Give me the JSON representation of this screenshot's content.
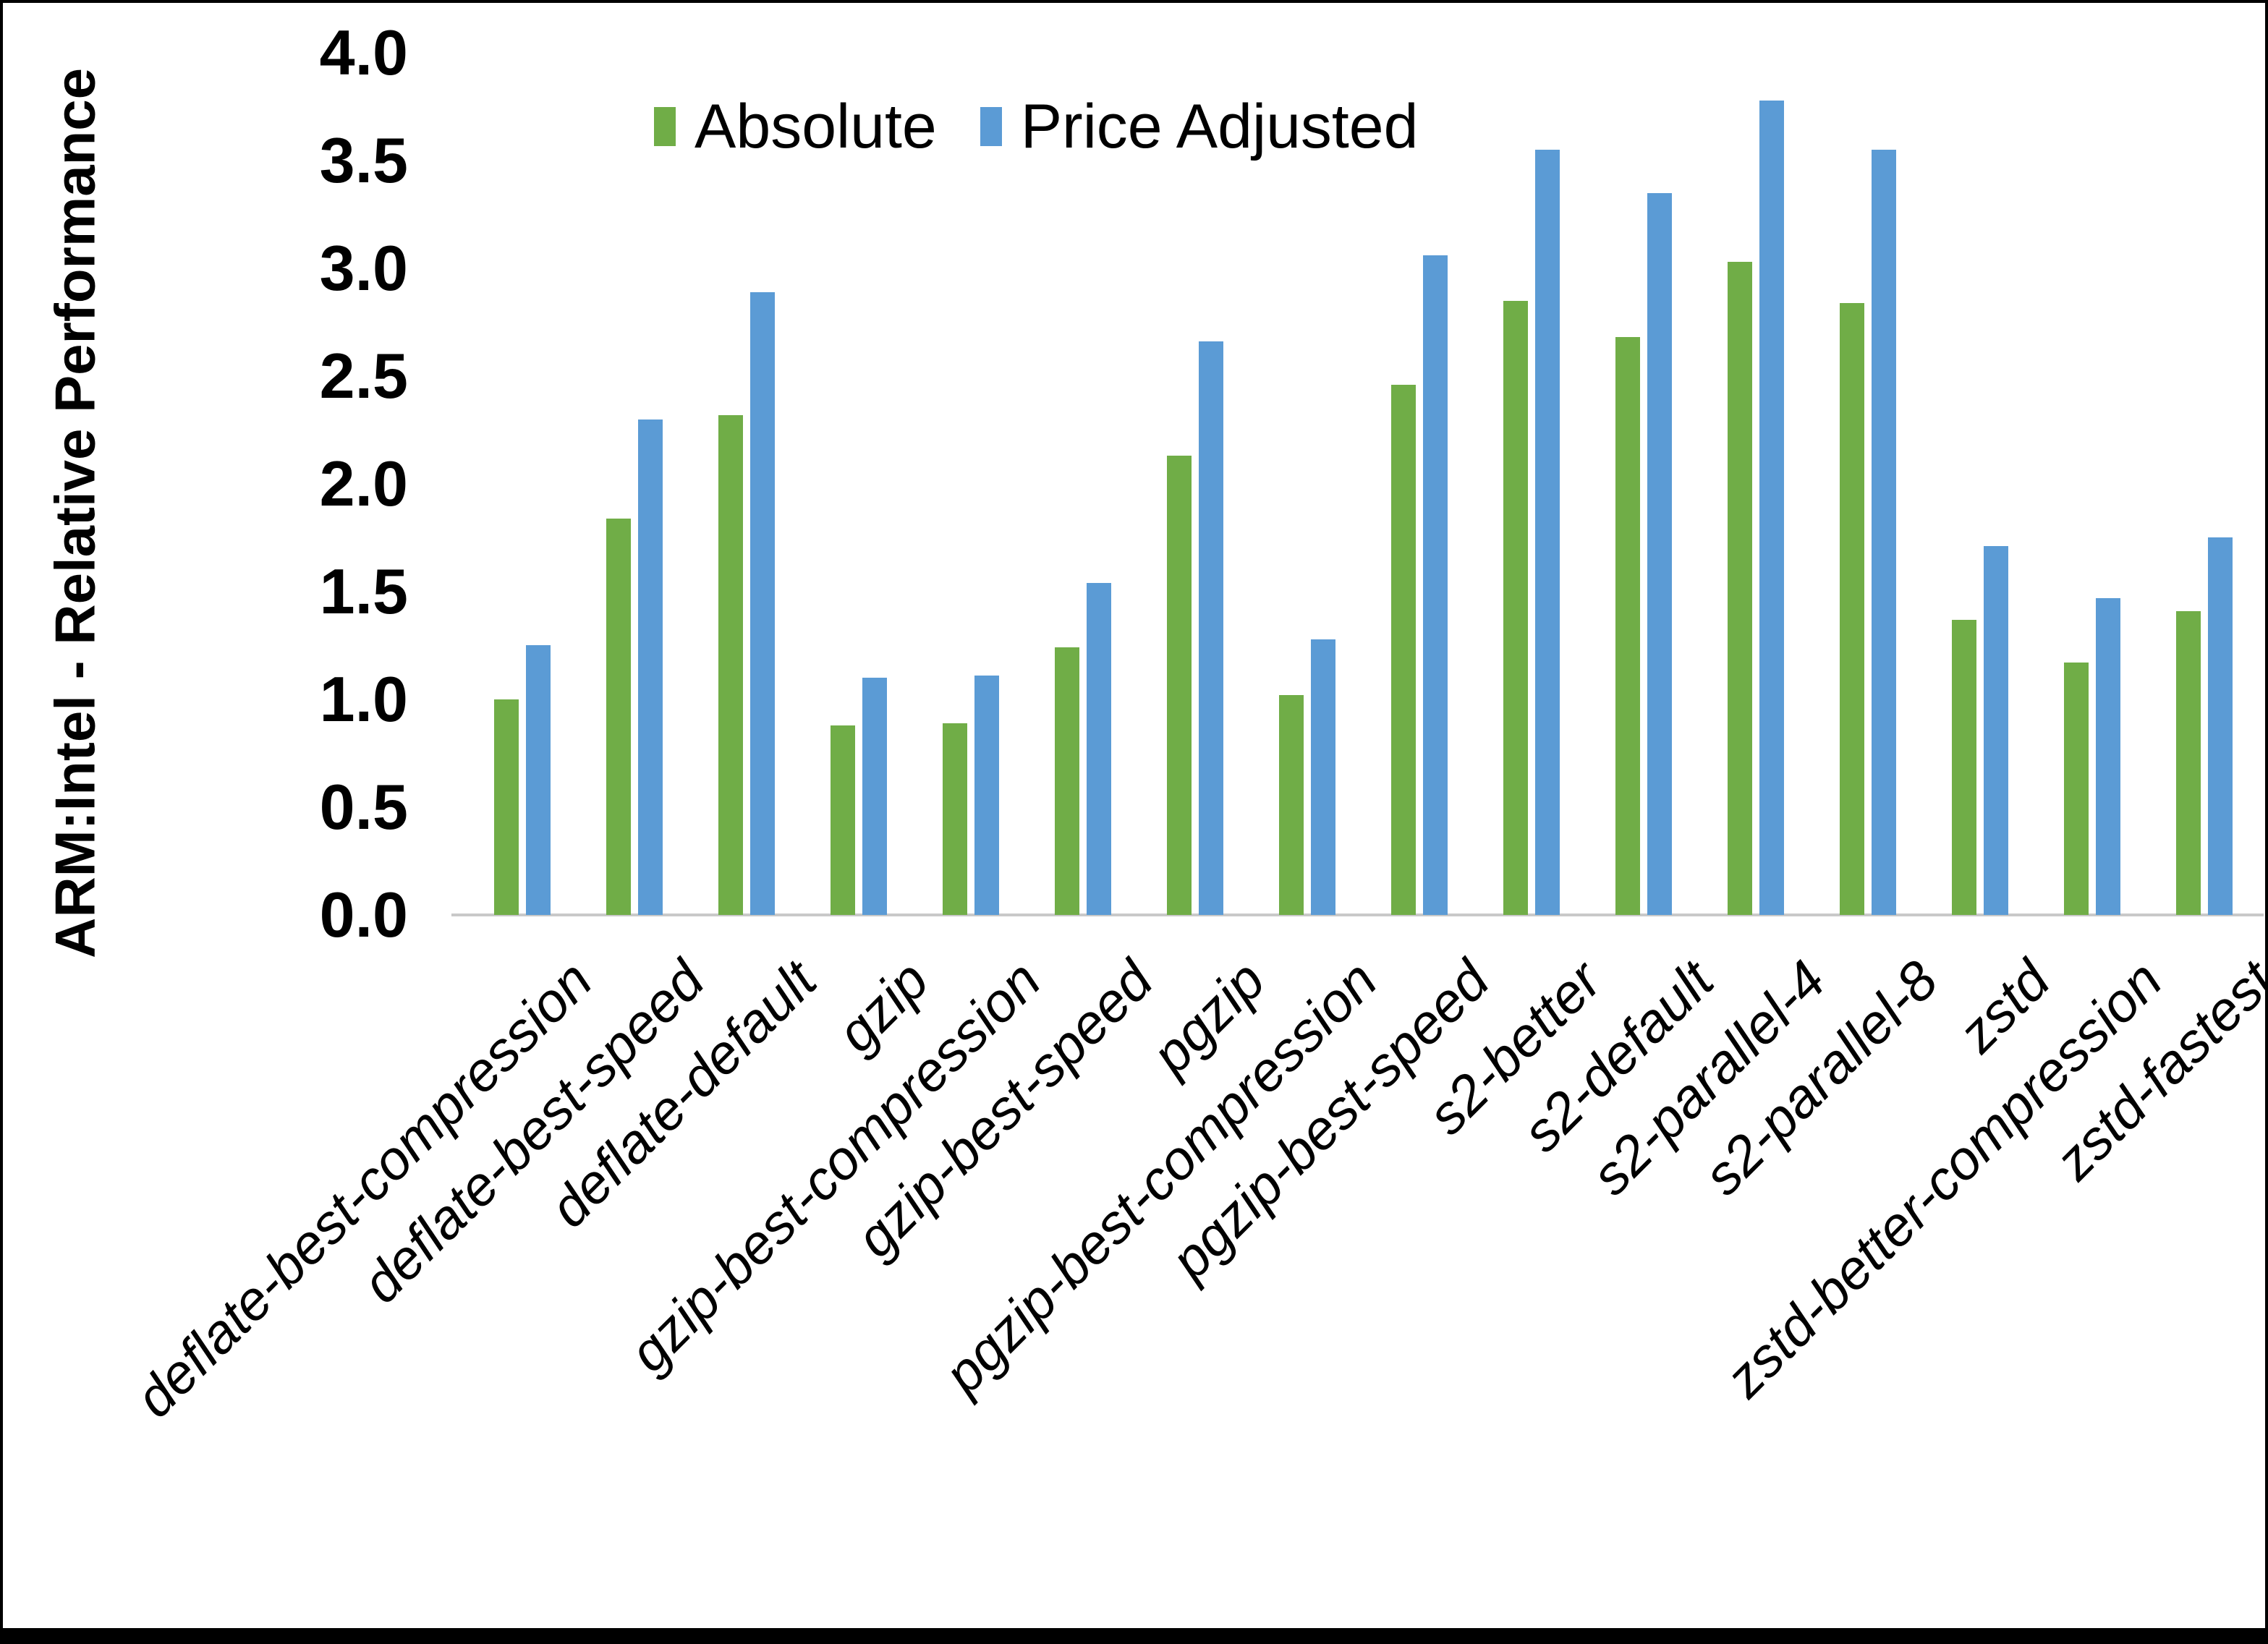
{
  "chart_data": {
    "type": "bar",
    "title": "",
    "ylabel": "ARM:Intel - Relative Performance",
    "xlabel": "",
    "ylim": [
      0.0,
      4.0
    ],
    "ytick_step": 0.5,
    "ytick_labels": [
      "0.0",
      "0.5",
      "1.0",
      "1.5",
      "2.0",
      "2.5",
      "3.0",
      "3.5",
      "4.0"
    ],
    "grid": "off",
    "legend_position": "top-center",
    "categories": [
      "deflate-best-compression",
      "deflate-best-speed",
      "deflate-default",
      "gzip",
      "gzip-best-compression",
      "gzip-best-speed",
      "pgzip",
      "pgzip-best-compression",
      "pgzip-best-speed",
      "s2-better",
      "s2-default",
      "s2-parallel-4",
      "s2-parallel-8",
      "zstd",
      "zstd-better-compression",
      "zstd-fastest"
    ],
    "series": [
      {
        "name": "Absolute",
        "color": "#70AD47",
        "values": [
          1.0,
          1.84,
          2.32,
          0.88,
          0.89,
          1.24,
          2.13,
          1.02,
          2.46,
          2.85,
          2.68,
          3.03,
          2.84,
          1.37,
          1.17,
          1.41
        ]
      },
      {
        "name": "Price Adjusted",
        "color": "#5B9BD5",
        "values": [
          1.25,
          2.3,
          2.89,
          1.1,
          1.11,
          1.54,
          2.66,
          1.28,
          3.06,
          3.55,
          3.35,
          3.78,
          3.55,
          1.71,
          1.47,
          1.75
        ]
      }
    ],
    "axis_line_color": "#c9c9c9",
    "text_color": "#000000",
    "background_color": "#ffffff"
  }
}
